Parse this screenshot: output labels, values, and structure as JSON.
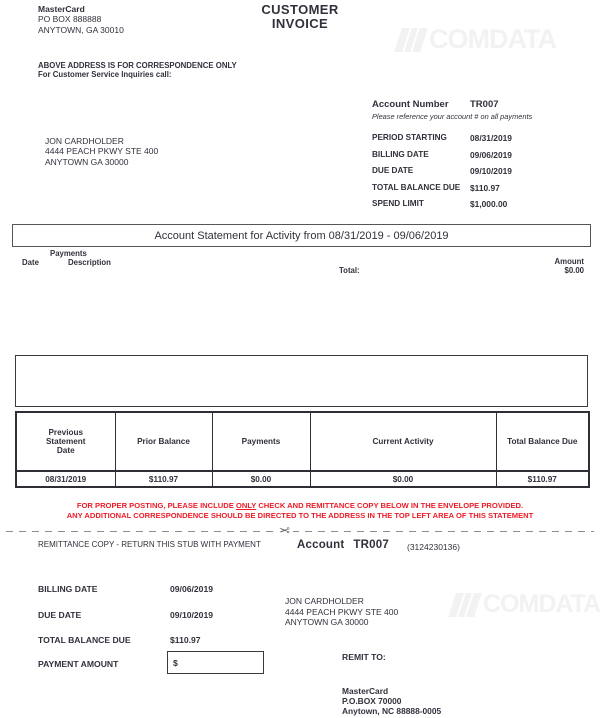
{
  "colors": {
    "text": "#31313c",
    "red": "#ed1c28",
    "watermark": "#f2f2f2"
  },
  "header": {
    "sender_name": "MasterCard",
    "sender_line1": "PO BOX 888888",
    "sender_line2": "ANYTOWN, GA  30010",
    "title_line1": "CUSTOMER",
    "title_line2": "INVOICE",
    "watermark": "COMDATA",
    "correspondence_line1": "ABOVE ADDRESS IS FOR CORRESPONDENCE ONLY",
    "correspondence_line2": "For Customer Service Inquiries call:"
  },
  "account": {
    "label": "Account Number",
    "number": "TR007",
    "note": "Please reference your account # on all payments",
    "fields": [
      {
        "label": "PERIOD STARTING",
        "value": "08/31/2019"
      },
      {
        "label": "BILLING DATE",
        "value": "09/06/2019"
      },
      {
        "label": "DUE DATE",
        "value": "09/10/2019"
      },
      {
        "label": "TOTAL BALANCE DUE",
        "value": "$110.97"
      },
      {
        "label": "SPEND LIMIT",
        "value": "$1,000.00"
      }
    ]
  },
  "cardholder": {
    "name": "JON CARDHOLDER",
    "address1": "4444 PEACH PKWY STE 400",
    "address2": "ANYTOWN GA 30000"
  },
  "statement": {
    "bar_title": "Account Statement for Activity from 08/31/2019 - 09/06/2019",
    "col_group": "Payments",
    "col_date": "Date",
    "col_description": "Description",
    "col_amount": "Amount",
    "total_label": "Total:",
    "total_value": "$0.00"
  },
  "summary_table": {
    "headers": [
      "Previous Statement Date",
      "Prior Balance",
      "Payments",
      "Current Activity",
      "Total Balance Due"
    ],
    "row": [
      "08/31/2019",
      "$110.97",
      "$0.00",
      "$0.00",
      "$110.97"
    ]
  },
  "notice": {
    "line1_pre": "FOR PROPER POSTING, PLEASE INCLUDE ",
    "line1_underline": "ONLY",
    "line1_post": " CHECK AND REMITTANCE COPY BELOW IN THE ENVELOPE PROVIDED.",
    "line2": "ANY ADDITIONAL CORRESPONDENCE SHOULD BE DIRECTED TO THE ADDRESS IN THE TOP LEFT AREA OF THIS STATEMENT"
  },
  "remittance": {
    "stub_label": "REMITTANCE COPY - RETURN THIS STUB WITH PAYMENT",
    "account_word": "Account",
    "account_number": "TR007",
    "account_ref": "(3124230136)",
    "fields": [
      {
        "label": "BILLING DATE",
        "value": "09/06/2019"
      },
      {
        "label": "DUE DATE",
        "value": "09/10/2019"
      },
      {
        "label": "TOTAL BALANCE DUE",
        "value": "$110.97"
      }
    ],
    "payment_label": "PAYMENT AMOUNT",
    "payment_currency": "$",
    "addressee_name": "JON CARDHOLDER",
    "addressee_line1": "4444 PEACH PKWY STE 400",
    "addressee_line2": "ANYTOWN GA 30000",
    "remit_to_label": "REMIT TO:",
    "remit_name": "MasterCard",
    "remit_line1": "P.O.BOX 70000",
    "remit_line2": "Anytown, NC 88888-0005",
    "watermark": "COMDATA"
  }
}
